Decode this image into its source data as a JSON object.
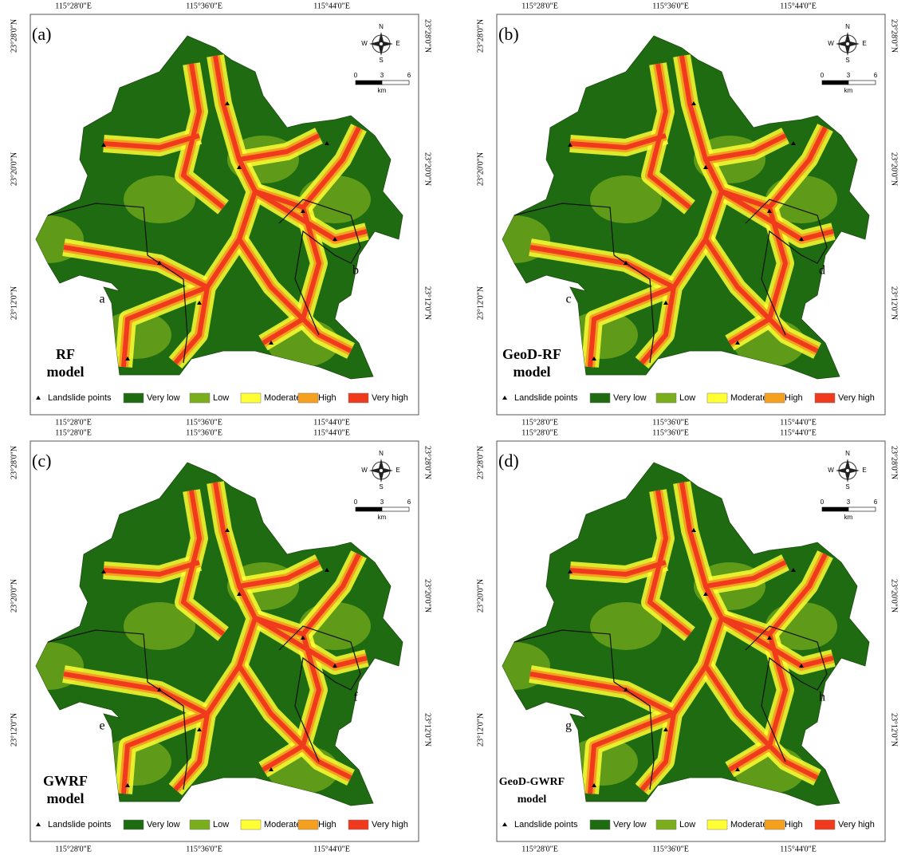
{
  "panels": [
    {
      "label": "(a)",
      "model_name": [
        "RF",
        "model"
      ],
      "region_labels": [
        "a",
        "b"
      ]
    },
    {
      "label": "(b)",
      "model_name": [
        "GeoD-RF",
        "model"
      ],
      "region_labels": [
        "c",
        "d"
      ]
    },
    {
      "label": "(c)",
      "model_name": [
        "GWRF",
        "model"
      ],
      "region_labels": [
        "e",
        "f"
      ]
    },
    {
      "label": "(d)",
      "model_name": [
        "GeoD-GWRF",
        "model"
      ],
      "region_labels": [
        "g",
        "h"
      ]
    }
  ],
  "x_labels": [
    "115°28'0\"E",
    "115°36'0\"E",
    "115°44'0\"E"
  ],
  "y_labels": [
    "23°28'0\"N",
    "23°20'0\"N",
    "23°12'0\"N"
  ],
  "compass": {
    "n": "N",
    "s": "S",
    "e": "E",
    "w": "W"
  },
  "scale_bar": {
    "ticks": [
      "0",
      "3",
      "6"
    ],
    "unit": "km"
  },
  "legend": {
    "points": "Landslide points",
    "classes": [
      {
        "label": "Very low",
        "color": "#1e6b12"
      },
      {
        "label": "Low",
        "color": "#7aae1c"
      },
      {
        "label": "Moderate",
        "color": "#ffff33"
      },
      {
        "label": "High",
        "color": "#f5a01e"
      },
      {
        "label": "Very high",
        "color": "#f03a1e"
      }
    ]
  }
}
